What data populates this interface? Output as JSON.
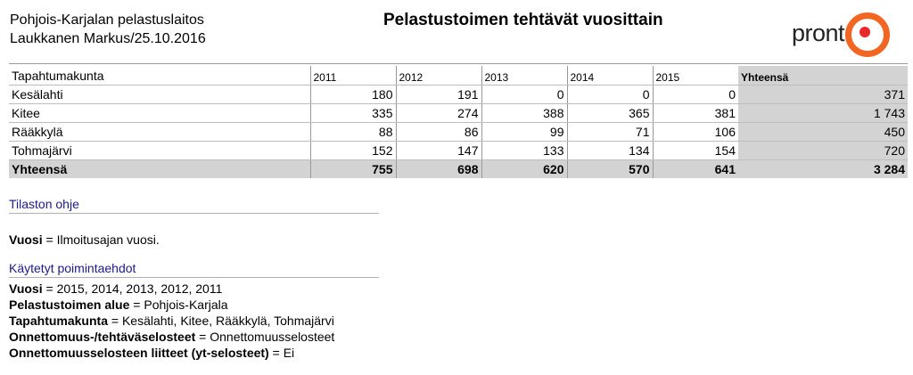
{
  "header": {
    "organization": "Pohjois-Karjalan pelastuslaitos",
    "author_date": "Laukkanen Markus/25.10.2016",
    "title": "Pelastustoimen tehtävät vuosittain",
    "logo_text": "pront"
  },
  "table": {
    "col_label": "Tapahtumakunta",
    "years": [
      "2011",
      "2012",
      "2013",
      "2014",
      "2015"
    ],
    "total_label": "Yhteensä",
    "rows": [
      {
        "name": "Kesälahti",
        "values": [
          "180",
          "191",
          "0",
          "0",
          "0"
        ],
        "total": "371"
      },
      {
        "name": "Kitee",
        "values": [
          "335",
          "274",
          "388",
          "365",
          "381"
        ],
        "total": "1 743"
      },
      {
        "name": "Rääkkylä",
        "values": [
          "88",
          "86",
          "99",
          "71",
          "106"
        ],
        "total": "450"
      },
      {
        "name": "Tohmajärvi",
        "values": [
          "152",
          "147",
          "133",
          "134",
          "154"
        ],
        "total": "720"
      }
    ],
    "totals_row": {
      "name": "Yhteensä",
      "values": [
        "755",
        "698",
        "620",
        "570",
        "641"
      ],
      "total": "3 284"
    }
  },
  "help": {
    "title": "Tilaston ohje",
    "items": [
      {
        "key": "Vuosi",
        "value": "Ilmoitusajan vuosi."
      }
    ]
  },
  "criteria": {
    "title": "Käytetyt poimintaehdot",
    "items": [
      {
        "key": "Vuosi",
        "value": "2015, 2014, 2013, 2012, 2011"
      },
      {
        "key": "Pelastustoimen alue",
        "value": "Pohjois-Karjala"
      },
      {
        "key": "Tapahtumakunta",
        "value": "Kesälahti, Kitee, Rääkkylä, Tohmajärvi"
      },
      {
        "key": "Onnettomuus-/tehtäväselosteet",
        "value": "Onnettomuusselosteet"
      },
      {
        "key": "Onnettomuusselosteen liitteet (yt-selosteet)",
        "value": "Ei"
      }
    ]
  },
  "colors": {
    "accent_orange": "#f26522",
    "accent_red": "#e8282b",
    "total_bg": "#d3d3d3",
    "section_title": "#1a1a8c"
  }
}
